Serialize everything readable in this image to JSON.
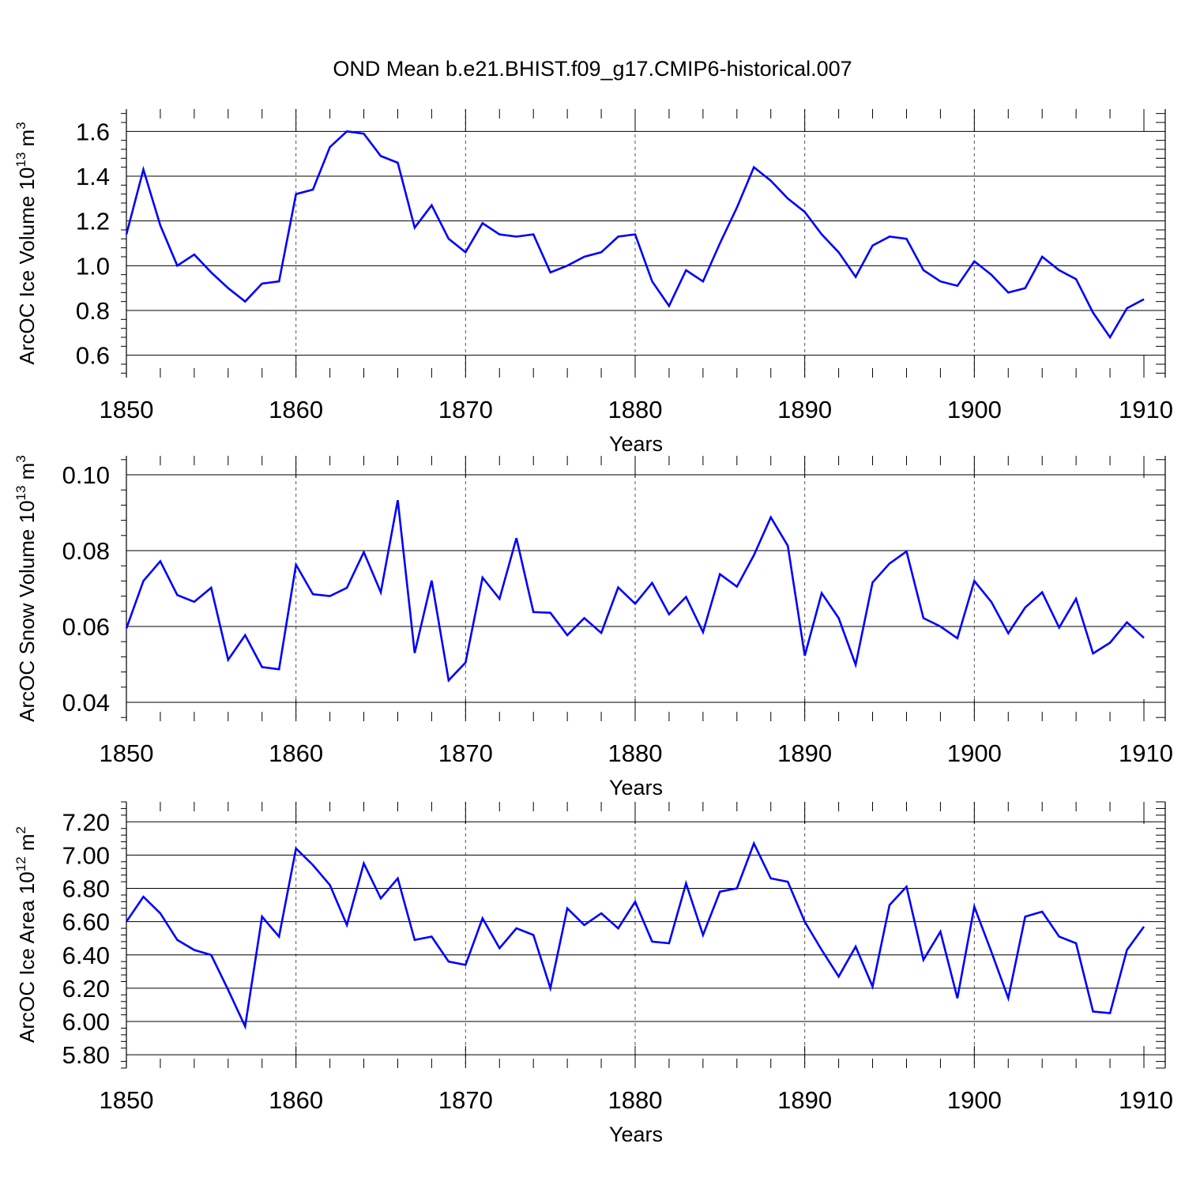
{
  "title": "OND Mean b.e21.BHIST.f09_g17.CMIP6-historical.007",
  "colors": {
    "line": "#0000ff",
    "axis": "#000000",
    "grid": "#555555",
    "background": "#ffffff"
  },
  "chart_data": [
    {
      "type": "line",
      "ylabel": "ArcOC Ice Volume 10",
      "ylabel_exp": "13",
      "ylabel_unit": " m",
      "ylabel_unit_exp": "3",
      "xlabel": "Years",
      "xlim": [
        1850,
        1910
      ],
      "ylim": [
        0.5,
        1.7
      ],
      "yticks": [
        0.6,
        0.8,
        1.0,
        1.2,
        1.4,
        1.6
      ],
      "ytick_labels": [
        "0.6",
        "0.8",
        "1.0",
        "1.2",
        "1.4",
        "1.6"
      ],
      "xticks": [
        1850,
        1860,
        1870,
        1880,
        1890,
        1900,
        1910
      ],
      "xtick_labels": [
        "1850",
        "1860",
        "1870",
        "1880",
        "1890",
        "1900",
        "1910"
      ],
      "x": [
        1850,
        1851,
        1852,
        1853,
        1854,
        1855,
        1856,
        1857,
        1858,
        1859,
        1860,
        1861,
        1862,
        1863,
        1864,
        1865,
        1866,
        1867,
        1868,
        1869,
        1870,
        1871,
        1872,
        1873,
        1874,
        1875,
        1876,
        1877,
        1878,
        1879,
        1880,
        1881,
        1882,
        1883,
        1884,
        1885,
        1886,
        1887,
        1888,
        1889,
        1890,
        1891,
        1892,
        1893,
        1894,
        1895,
        1896,
        1897,
        1898,
        1899,
        1900,
        1901,
        1902,
        1903,
        1904,
        1905,
        1906,
        1907,
        1908,
        1909,
        1910
      ],
      "values": [
        1.14,
        1.43,
        1.18,
        1.0,
        1.05,
        0.97,
        0.9,
        0.84,
        0.92,
        0.93,
        1.32,
        1.34,
        1.53,
        1.6,
        1.59,
        1.49,
        1.46,
        1.17,
        1.27,
        1.12,
        1.06,
        1.19,
        1.14,
        1.13,
        1.14,
        0.97,
        1.0,
        1.04,
        1.06,
        1.13,
        1.14,
        0.93,
        0.82,
        0.98,
        0.93,
        1.1,
        1.26,
        1.44,
        1.38,
        1.3,
        1.24,
        1.14,
        1.06,
        0.95,
        1.09,
        1.13,
        1.12,
        0.98,
        0.93,
        0.91,
        1.02,
        0.96,
        0.88,
        0.9,
        1.04,
        0.98,
        0.94,
        0.79,
        0.68,
        0.81,
        0.85
      ]
    },
    {
      "type": "line",
      "ylabel": "ArcOC Snow Volume 10",
      "ylabel_exp": "13",
      "ylabel_unit": " m",
      "ylabel_unit_exp": "3",
      "xlabel": "Years",
      "xlim": [
        1850,
        1910
      ],
      "ylim": [
        0.035,
        0.105
      ],
      "yticks": [
        0.04,
        0.06,
        0.08,
        0.1
      ],
      "ytick_labels": [
        "0.04",
        "0.06",
        "0.08",
        "0.10"
      ],
      "xticks": [
        1850,
        1860,
        1870,
        1880,
        1890,
        1900,
        1910
      ],
      "xtick_labels": [
        "1850",
        "1860",
        "1870",
        "1880",
        "1890",
        "1900",
        "1910"
      ],
      "x": [
        1850,
        1851,
        1852,
        1853,
        1854,
        1855,
        1856,
        1857,
        1858,
        1859,
        1860,
        1861,
        1862,
        1863,
        1864,
        1865,
        1866,
        1867,
        1868,
        1869,
        1870,
        1871,
        1872,
        1873,
        1874,
        1875,
        1876,
        1877,
        1878,
        1879,
        1880,
        1881,
        1882,
        1883,
        1884,
        1885,
        1886,
        1887,
        1888,
        1889,
        1890,
        1891,
        1892,
        1893,
        1894,
        1895,
        1896,
        1897,
        1898,
        1899,
        1900,
        1901,
        1902,
        1903,
        1904,
        1905,
        1906,
        1907,
        1908,
        1909,
        1910
      ],
      "values": [
        0.0595,
        0.072,
        0.0772,
        0.0683,
        0.0665,
        0.0702,
        0.0512,
        0.0577,
        0.0493,
        0.0487,
        0.0763,
        0.0685,
        0.068,
        0.0702,
        0.0796,
        0.069,
        0.0933,
        0.053,
        0.0721,
        0.0458,
        0.0505,
        0.0729,
        0.0673,
        0.0833,
        0.0638,
        0.0636,
        0.0577,
        0.0622,
        0.0583,
        0.0703,
        0.066,
        0.0715,
        0.0632,
        0.0678,
        0.0585,
        0.0738,
        0.0705,
        0.0788,
        0.0888,
        0.0813,
        0.0523,
        0.0688,
        0.0622,
        0.0499,
        0.0716,
        0.0766,
        0.0798,
        0.0622,
        0.06,
        0.0569,
        0.072,
        0.0665,
        0.0582,
        0.065,
        0.069,
        0.0597,
        0.0673,
        0.0529,
        0.0557,
        0.0611,
        0.057
      ]
    },
    {
      "type": "line",
      "ylabel": "ArcOC Ice Area 10",
      "ylabel_exp": "12",
      "ylabel_unit": " m",
      "ylabel_unit_exp": "2",
      "xlabel": "Years",
      "xlim": [
        1850,
        1910
      ],
      "ylim": [
        5.72,
        7.32
      ],
      "yticks": [
        5.8,
        6.0,
        6.2,
        6.4,
        6.6,
        6.8,
        7.0,
        7.2
      ],
      "ytick_labels": [
        "5.80",
        "6.00",
        "6.20",
        "6.40",
        "6.60",
        "6.80",
        "7.00",
        "7.20"
      ],
      "xticks": [
        1850,
        1860,
        1870,
        1880,
        1890,
        1900,
        1910
      ],
      "xtick_labels": [
        "1850",
        "1860",
        "1870",
        "1880",
        "1890",
        "1900",
        "1910"
      ],
      "x": [
        1850,
        1851,
        1852,
        1853,
        1854,
        1855,
        1856,
        1857,
        1858,
        1859,
        1860,
        1861,
        1862,
        1863,
        1864,
        1865,
        1866,
        1867,
        1868,
        1869,
        1870,
        1871,
        1872,
        1873,
        1874,
        1875,
        1876,
        1877,
        1878,
        1879,
        1880,
        1881,
        1882,
        1883,
        1884,
        1885,
        1886,
        1887,
        1888,
        1889,
        1890,
        1891,
        1892,
        1893,
        1894,
        1895,
        1896,
        1897,
        1898,
        1899,
        1900,
        1901,
        1902,
        1903,
        1904,
        1905,
        1906,
        1907,
        1908,
        1909,
        1910
      ],
      "values": [
        6.6,
        6.75,
        6.65,
        6.49,
        6.43,
        6.4,
        6.19,
        5.97,
        6.63,
        6.51,
        7.04,
        6.94,
        6.82,
        6.58,
        6.95,
        6.74,
        6.86,
        6.49,
        6.51,
        6.36,
        6.34,
        6.62,
        6.44,
        6.56,
        6.52,
        6.2,
        6.68,
        6.58,
        6.65,
        6.56,
        6.72,
        6.48,
        6.47,
        6.83,
        6.52,
        6.78,
        6.8,
        7.07,
        6.86,
        6.84,
        6.6,
        6.43,
        6.27,
        6.45,
        6.21,
        6.7,
        6.81,
        6.37,
        6.54,
        6.14,
        6.69,
        6.42,
        6.14,
        6.63,
        6.66,
        6.51,
        6.47,
        6.06,
        6.05,
        6.43,
        6.57
      ]
    }
  ]
}
